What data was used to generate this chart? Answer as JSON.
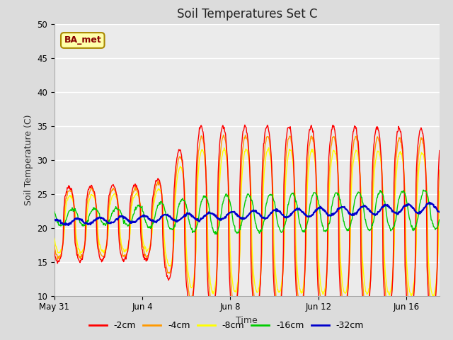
{
  "title": "Soil Temperatures Set C",
  "xlabel": "Time",
  "ylabel": "Soil Temperature (C)",
  "ylim": [
    10,
    50
  ],
  "yticks": [
    10,
    15,
    20,
    25,
    30,
    35,
    40,
    45,
    50
  ],
  "legend_labels": [
    "-2cm",
    "-4cm",
    "-8cm",
    "-16cm",
    "-32cm"
  ],
  "legend_colors": [
    "#ff0000",
    "#ff9900",
    "#ffff00",
    "#00cc00",
    "#0000cc"
  ],
  "bg_color": "#dcdcdc",
  "plot_bg_color": "#ebebeb",
  "annotation_text": "BA_met",
  "annotation_color": "#880000",
  "annotation_bg": "#ffffaa",
  "annotation_border": "#aa8800",
  "x_tick_labels": [
    "May 31",
    "Jun 4",
    "Jun 8",
    "Jun 12",
    "Jun 16"
  ],
  "x_tick_positions": [
    0,
    4,
    8,
    12,
    16
  ],
  "xlim": [
    0,
    17.5
  ]
}
